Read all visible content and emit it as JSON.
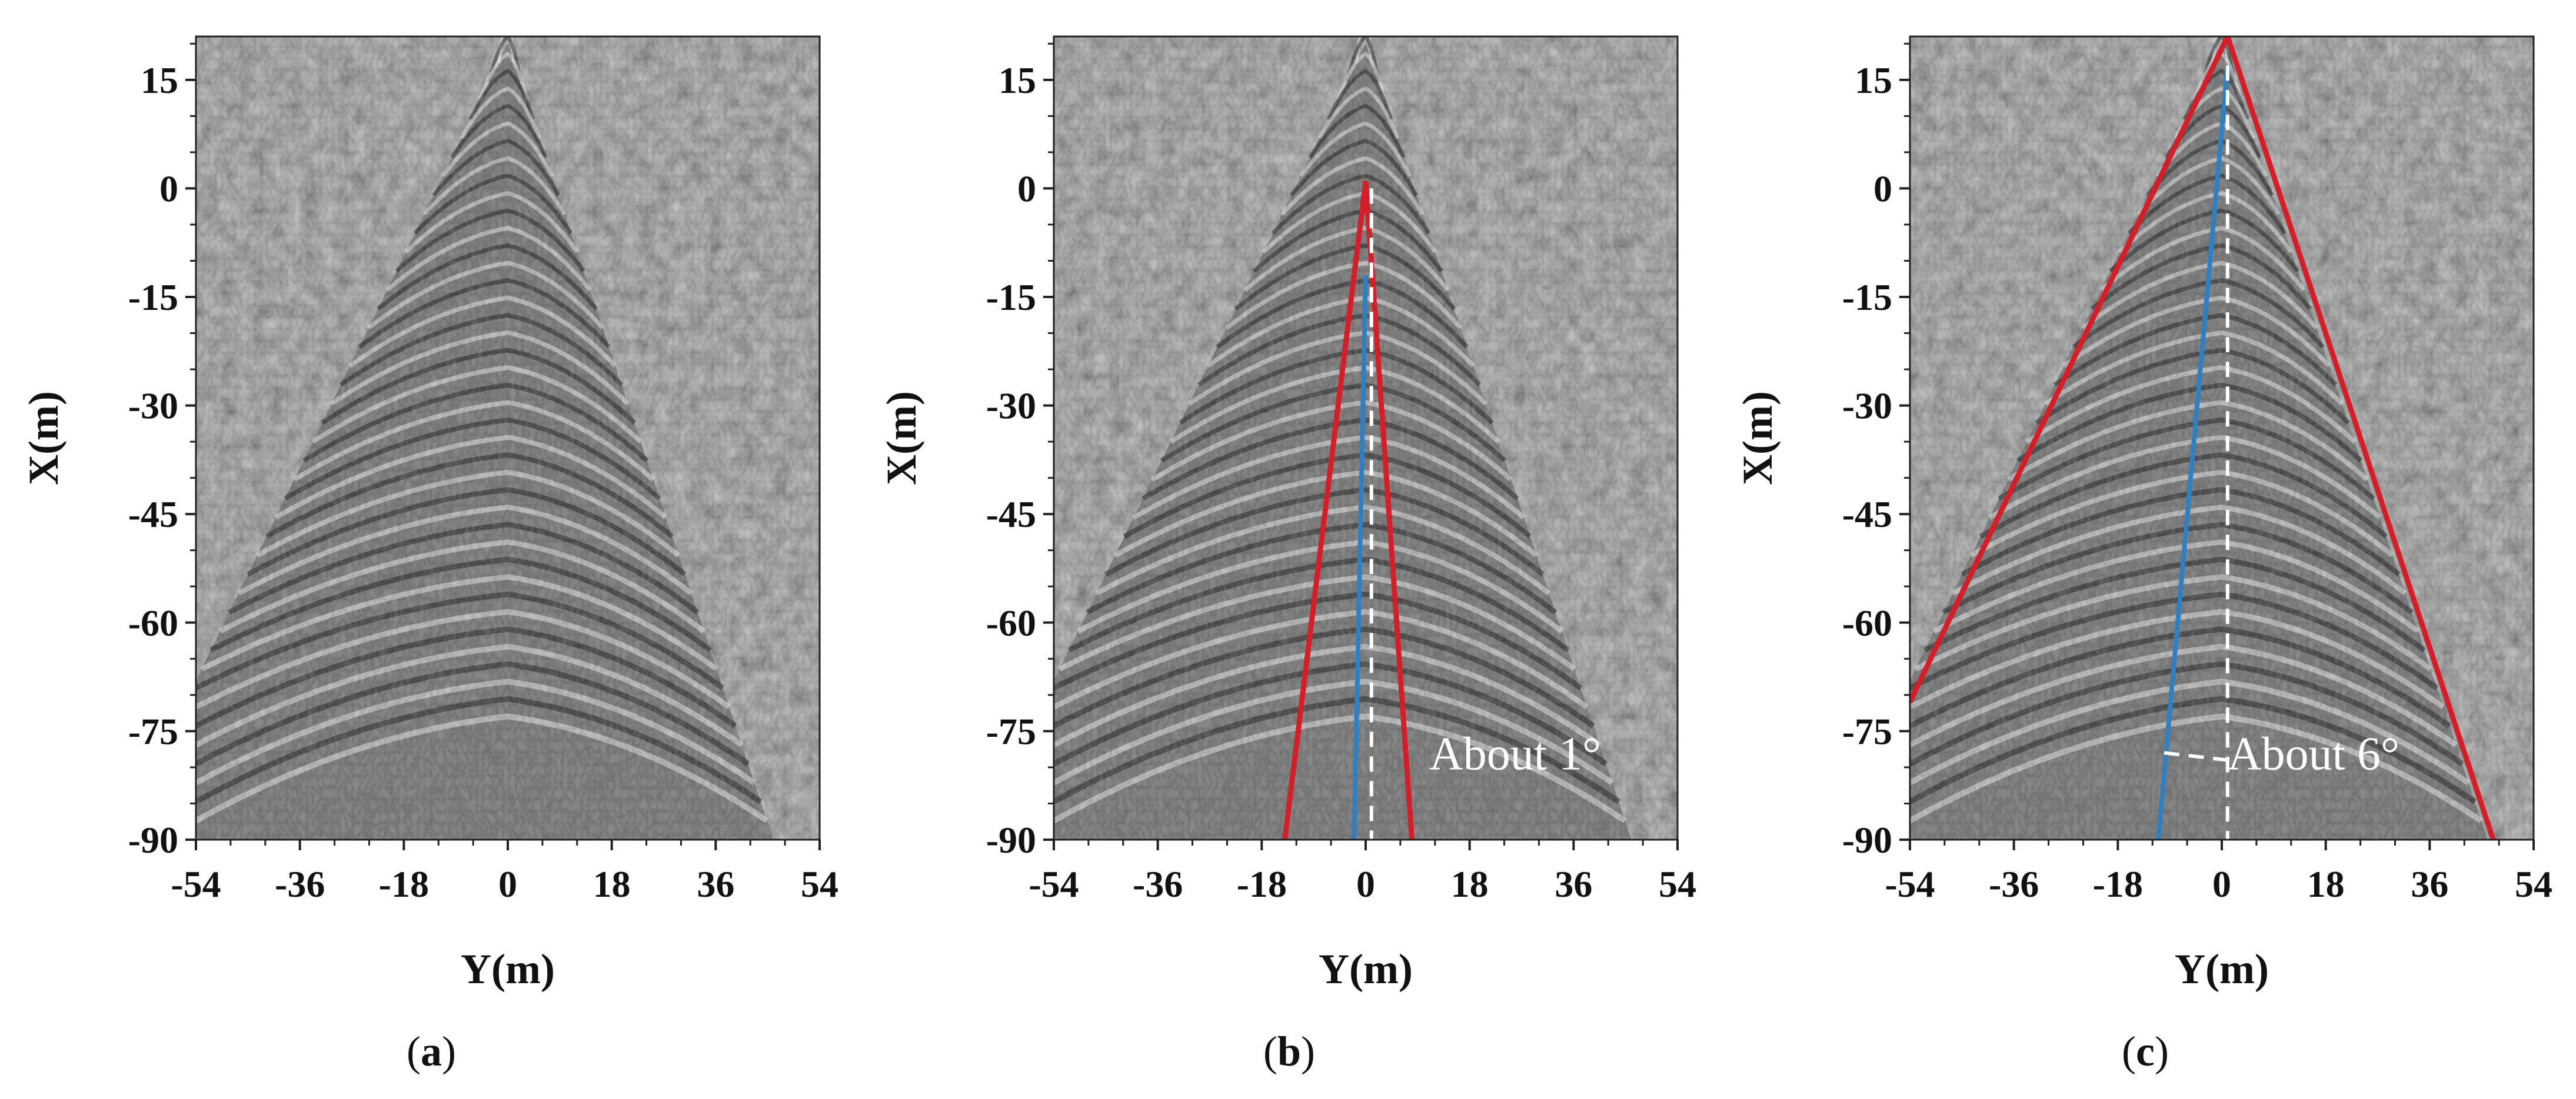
{
  "colors": {
    "background": "#ffffff",
    "plot_gray": "#8a8a8a",
    "wavefront": "#d31f2a",
    "heading": "#2f7fc1",
    "centerline": "#ffffff",
    "text": "#111111"
  },
  "chart_data": [
    {
      "type": "heatmap",
      "caption": "(a)",
      "xlabel": "Y(m)",
      "ylabel": "X(m)",
      "xlim": [
        -54,
        54
      ],
      "ylim": [
        -90,
        21
      ],
      "x_ticks": [
        "-54",
        "-36",
        "-18",
        "0",
        "18",
        "36",
        "54"
      ],
      "y_ticks": [
        "15",
        "0",
        "-15",
        "-30",
        "-45",
        "-60",
        "-75",
        "-90"
      ],
      "wake_apex": [
        0,
        20
      ],
      "wake_edges": [
        [
          -54,
          -68
        ],
        [
          46,
          -90
        ]
      ],
      "overlays": []
    },
    {
      "type": "heatmap",
      "caption": "(b)",
      "xlabel": "Y(m)",
      "ylabel": "X(m)",
      "xlim": [
        -54,
        54
      ],
      "ylim": [
        -90,
        21
      ],
      "x_ticks": [
        "-54",
        "-36",
        "-18",
        "0",
        "18",
        "36",
        "54"
      ],
      "y_ticks": [
        "15",
        "0",
        "-15",
        "-30",
        "-45",
        "-60",
        "-75",
        "-90"
      ],
      "wake_apex": [
        0,
        20
      ],
      "wake_edges": [
        [
          -54,
          -68
        ],
        [
          46,
          -90
        ]
      ],
      "annotation": "About 1°",
      "overlays": [
        {
          "kind": "red",
          "points": [
            [
              -14,
              -90
            ],
            [
              0,
              1
            ],
            [
              8,
              -90
            ]
          ]
        },
        {
          "kind": "blue",
          "points": [
            [
              -2,
              -90
            ],
            [
              0,
              -12
            ]
          ]
        },
        {
          "kind": "dashed",
          "points": [
            [
              1,
              0
            ],
            [
              1,
              -90
            ]
          ]
        }
      ]
    },
    {
      "type": "heatmap",
      "caption": "(c)",
      "xlabel": "Y(m)",
      "ylabel": "X(m)",
      "xlim": [
        -54,
        54
      ],
      "ylim": [
        -90,
        21
      ],
      "x_ticks": [
        "-54",
        "-36",
        "-18",
        "0",
        "18",
        "36",
        "54"
      ],
      "y_ticks": [
        "15",
        "0",
        "-15",
        "-30",
        "-45",
        "-60",
        "-75",
        "-90"
      ],
      "wake_apex": [
        0,
        20
      ],
      "wake_edges": [
        [
          -54,
          -68
        ],
        [
          46,
          -90
        ]
      ],
      "annotation": "About 6°",
      "overlays": [
        {
          "kind": "red",
          "points": [
            [
              -54,
              -71
            ],
            [
              1,
              21
            ],
            [
              47,
              -90
            ]
          ]
        },
        {
          "kind": "blue",
          "points": [
            [
              -11,
              -90
            ],
            [
              1,
              17
            ]
          ]
        },
        {
          "kind": "dashed",
          "points": [
            [
              1,
              17
            ],
            [
              1,
              -90
            ]
          ]
        },
        {
          "kind": "dashed",
          "points": [
            [
              -10,
              -78
            ],
            [
              1,
              -79
            ]
          ]
        }
      ]
    }
  ]
}
